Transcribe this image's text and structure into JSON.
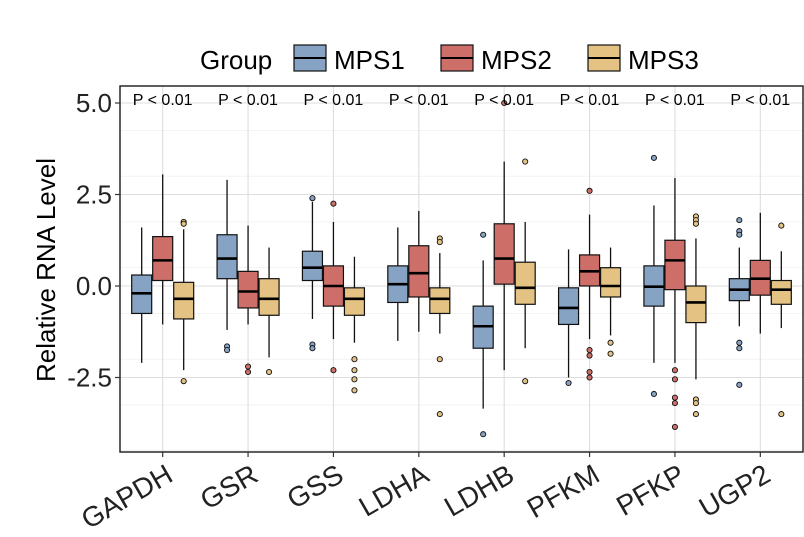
{
  "chart_data": {
    "type": "boxplot",
    "title": "",
    "xlabel": "",
    "ylabel": "Relative RNA Level",
    "ylim": [
      -4.5,
      5.5
    ],
    "yticks": [
      5.0,
      2.5,
      0.0,
      -2.5
    ],
    "ytick_labels": [
      "5.0",
      "2.5",
      "0.0",
      "-2.5"
    ],
    "legend": {
      "title": "Group",
      "position": "top",
      "entries": [
        {
          "name": "MPS1",
          "color": "#86a3c3"
        },
        {
          "name": "MPS2",
          "color": "#cd6f68"
        },
        {
          "name": "MPS3",
          "color": "#e3c283"
        }
      ]
    },
    "categories": [
      "GAPDH",
      "GSR",
      "GSS",
      "LDHA",
      "LDHB",
      "PFKM",
      "PFKP",
      "UGP2"
    ],
    "pvalues": [
      "P < 0.01",
      "P < 0.01",
      "P < 0.01",
      "P < 0.01",
      "P < 0.01",
      "P < 0.01",
      "P < 0.01",
      "P < 0.01"
    ],
    "series": [
      {
        "name": "MPS1",
        "boxes": [
          {
            "whislo": -2.1,
            "q1": -0.75,
            "med": -0.2,
            "q3": 0.3,
            "whishi": 1.6,
            "fliers": []
          },
          {
            "whislo": -1.2,
            "q1": 0.2,
            "med": 0.75,
            "q3": 1.4,
            "whishi": 2.9,
            "fliers": [
              -1.65,
              -1.75
            ]
          },
          {
            "whislo": -0.9,
            "q1": 0.15,
            "med": 0.5,
            "q3": 0.95,
            "whishi": 2.3,
            "fliers": [
              2.4,
              -1.6,
              -1.7
            ]
          },
          {
            "whislo": -1.5,
            "q1": -0.45,
            "med": 0.05,
            "q3": 0.55,
            "whishi": 1.6,
            "fliers": []
          },
          {
            "whislo": -3.35,
            "q1": -1.7,
            "med": -1.1,
            "q3": -0.55,
            "whishi": 0.7,
            "fliers": [
              1.4,
              -4.05
            ]
          },
          {
            "whislo": -2.5,
            "q1": -1.05,
            "med": -0.6,
            "q3": -0.05,
            "whishi": 1.0,
            "fliers": [
              -2.65
            ]
          },
          {
            "whislo": -2.1,
            "q1": -0.55,
            "med": -0.02,
            "q3": 0.55,
            "whishi": 2.2,
            "fliers": [
              3.5,
              -2.95
            ]
          },
          {
            "whislo": -1.1,
            "q1": -0.4,
            "med": -0.1,
            "q3": 0.2,
            "whishi": 1.05,
            "fliers": [
              1.8,
              1.5,
              1.4,
              -1.55,
              -1.7,
              -2.7
            ]
          }
        ]
      },
      {
        "name": "MPS2",
        "boxes": [
          {
            "whislo": -1.05,
            "q1": 0.15,
            "med": 0.7,
            "q3": 1.35,
            "whishi": 3.05,
            "fliers": []
          },
          {
            "whislo": -1.05,
            "q1": -0.6,
            "med": -0.15,
            "q3": 0.4,
            "whishi": 1.65,
            "fliers": [
              -2.2,
              -2.35
            ]
          },
          {
            "whislo": -1.45,
            "q1": -0.55,
            "med": 0.0,
            "q3": 0.55,
            "whishi": 1.75,
            "fliers": [
              2.25,
              -2.3
            ]
          },
          {
            "whislo": -1.25,
            "q1": -0.3,
            "med": 0.35,
            "q3": 1.1,
            "whishi": 2.05,
            "fliers": []
          },
          {
            "whislo": -2.3,
            "q1": 0.05,
            "med": 0.75,
            "q3": 1.7,
            "whishi": 3.4,
            "fliers": [
              5.0
            ]
          },
          {
            "whislo": -1.45,
            "q1": 0.0,
            "med": 0.4,
            "q3": 0.85,
            "whishi": 1.95,
            "fliers": [
              2.6,
              -1.75,
              -1.9,
              -2.35,
              -2.5
            ]
          },
          {
            "whislo": -2.1,
            "q1": -0.1,
            "med": 0.7,
            "q3": 1.25,
            "whishi": 2.95,
            "fliers": [
              -2.3,
              -2.55,
              -3.05,
              -3.2,
              -3.85
            ]
          },
          {
            "whislo": -1.3,
            "q1": -0.25,
            "med": 0.2,
            "q3": 0.7,
            "whishi": 2.0,
            "fliers": []
          }
        ]
      },
      {
        "name": "MPS3",
        "boxes": [
          {
            "whislo": -2.3,
            "q1": -0.9,
            "med": -0.35,
            "q3": 0.1,
            "whishi": 1.55,
            "fliers": [
              1.75,
              1.7,
              -2.6
            ]
          },
          {
            "whislo": -1.95,
            "q1": -0.8,
            "med": -0.35,
            "q3": 0.2,
            "whishi": 1.05,
            "fliers": [
              -2.35
            ]
          },
          {
            "whislo": -1.55,
            "q1": -0.8,
            "med": -0.35,
            "q3": -0.05,
            "whishi": 0.8,
            "fliers": [
              -2.0,
              -2.3,
              -2.55,
              -2.85
            ]
          },
          {
            "whislo": -1.3,
            "q1": -0.75,
            "med": -0.35,
            "q3": -0.05,
            "whishi": 0.9,
            "fliers": [
              1.3,
              1.2,
              -2.0,
              -3.5
            ]
          },
          {
            "whislo": -1.7,
            "q1": -0.5,
            "med": -0.05,
            "q3": 0.65,
            "whishi": 1.75,
            "fliers": [
              3.4,
              -2.6
            ]
          },
          {
            "whislo": -1.35,
            "q1": -0.3,
            "med": 0.0,
            "q3": 0.5,
            "whishi": 1.05,
            "fliers": [
              -1.55,
              -1.85
            ]
          },
          {
            "whislo": -2.55,
            "q1": -1.0,
            "med": -0.45,
            "q3": 0.0,
            "whishi": 1.3,
            "fliers": [
              1.9,
              1.8,
              1.7,
              -3.1,
              -3.2,
              -3.5
            ]
          },
          {
            "whislo": -1.15,
            "q1": -0.5,
            "med": -0.1,
            "q3": 0.15,
            "whishi": 0.95,
            "fliers": [
              1.65,
              -3.5
            ]
          }
        ]
      }
    ]
  }
}
